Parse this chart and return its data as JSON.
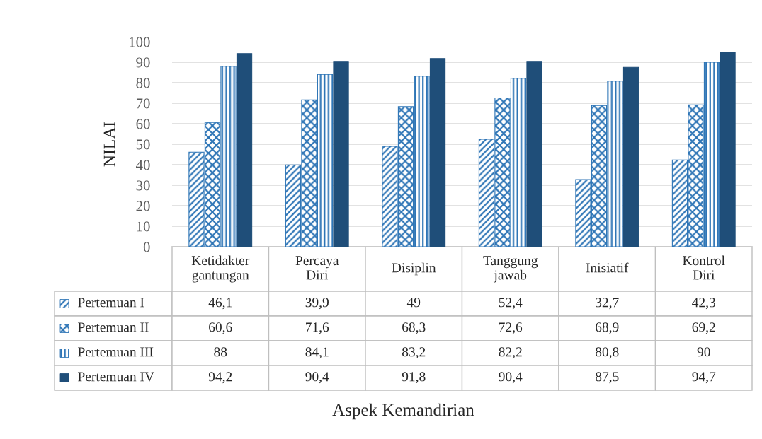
{
  "chart_data": {
    "type": "bar",
    "categories": [
      "Ketidakter\ngantungan",
      "Percaya\nDiri",
      "Disiplin",
      "Tanggung\njawab",
      "Inisiatif",
      "Kontrol\nDiri"
    ],
    "series": [
      {
        "name": "Pertemuan I",
        "color": "#2e75b6",
        "values": [
          46.1,
          39.9,
          49,
          52.4,
          32.7,
          42.3
        ]
      },
      {
        "name": "Pertemuan II",
        "color": "#2e75b6",
        "values": [
          60.6,
          71.6,
          68.3,
          72.6,
          68.9,
          69.2
        ]
      },
      {
        "name": "Pertemuan III",
        "color": "#2e75b6",
        "values": [
          88,
          84.1,
          83.2,
          82.2,
          80.8,
          90
        ]
      },
      {
        "name": "Pertemuan IV",
        "color": "#1f4e79",
        "values": [
          94.2,
          90.4,
          91.8,
          90.4,
          87.5,
          94.7
        ]
      }
    ],
    "value_labels": [
      [
        "46,1",
        "39,9",
        "49",
        "52,4",
        "32,7",
        "42,3"
      ],
      [
        "60,6",
        "71,6",
        "68,3",
        "72,6",
        "68,9",
        "69,2"
      ],
      [
        "88",
        "84,1",
        "83,2",
        "82,2",
        "80,8",
        "90"
      ],
      [
        "94,2",
        "90,4",
        "91,8",
        "90,4",
        "87,5",
        "94,7"
      ]
    ],
    "ylabel": "NILAI",
    "annotations": [
      "Aspek Kemandirian"
    ],
    "ylim": [
      0,
      100
    ],
    "yticks": [
      0,
      10,
      20,
      30,
      40,
      50,
      60,
      70,
      80,
      90,
      100
    ],
    "grid": "y",
    "legend": "bottom"
  }
}
